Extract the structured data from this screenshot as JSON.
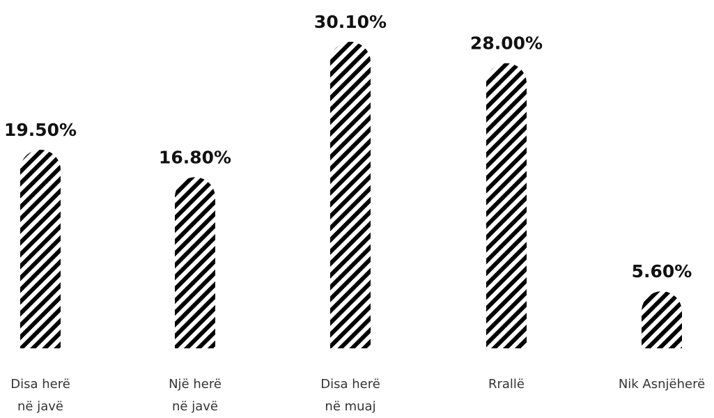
{
  "chart_data": {
    "type": "bar",
    "title": "",
    "xlabel": "",
    "ylabel": "",
    "categories": [
      [
        "Disa herë",
        "në javë"
      ],
      [
        "Një herë",
        "në javë"
      ],
      [
        "Disa herë",
        "në muaj"
      ],
      [
        "Rrallë"
      ],
      [
        "Nik Asnjëherë"
      ]
    ],
    "values": [
      19.5,
      16.8,
      30.1,
      28.0,
      5.6
    ],
    "value_labels": [
      "19.50%",
      "16.80%",
      "30.10%",
      "28.00%",
      "5.60%"
    ],
    "unit": "%",
    "ylim": [
      0,
      30.1
    ],
    "grid": false,
    "legend": "none",
    "bar_fill": "diagonal-stripes",
    "colors": {
      "stripe": "#000000",
      "background": "#ffffff",
      "value_text": "#111111",
      "category_text": "#333333"
    }
  }
}
